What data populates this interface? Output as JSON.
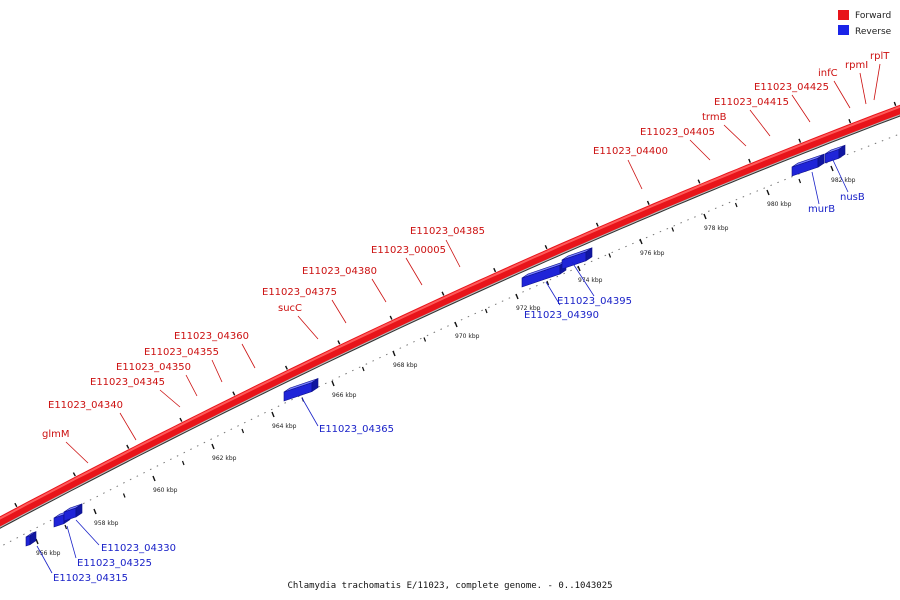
{
  "title": "Chlamydia trachomatis E/11023, complete genome. - 0..1043025",
  "colors": {
    "forward": "#e8141a",
    "reverse": "#1a24e8",
    "forward_label": "#cc1111",
    "reverse_label": "#1a22c8"
  },
  "legend": [
    {
      "name": "Forward",
      "color": "#e8141a"
    },
    {
      "name": "Reverse",
      "color": "#1a24e8"
    }
  ],
  "ruler": {
    "unit": "kbp",
    "ticks": [
      "956 kbp",
      "958 kbp",
      "960 kbp",
      "962 kbp",
      "964 kbp",
      "966 kbp",
      "968 kbp",
      "970 kbp",
      "972 kbp",
      "974 kbp",
      "976 kbp",
      "978 kbp",
      "980 kbp",
      "982 kbp"
    ]
  },
  "forward_genes": [
    "glmM",
    "E11023_04340",
    "E11023_04345",
    "E11023_04350",
    "E11023_04355",
    "E11023_04360",
    "sucC",
    "E11023_04375",
    "E11023_04380",
    "E11023_00005",
    "E11023_04385",
    "E11023_04400",
    "E11023_04405",
    "trmB",
    "E11023_04415",
    "E11023_04425",
    "infC",
    "rpmI",
    "rplT"
  ],
  "reverse_genes": [
    "E11023_04315",
    "E11023_04325",
    "E11023_04330",
    "E11023_04365",
    "E11023_04390",
    "E11023_04395",
    "murB",
    "nusB"
  ]
}
